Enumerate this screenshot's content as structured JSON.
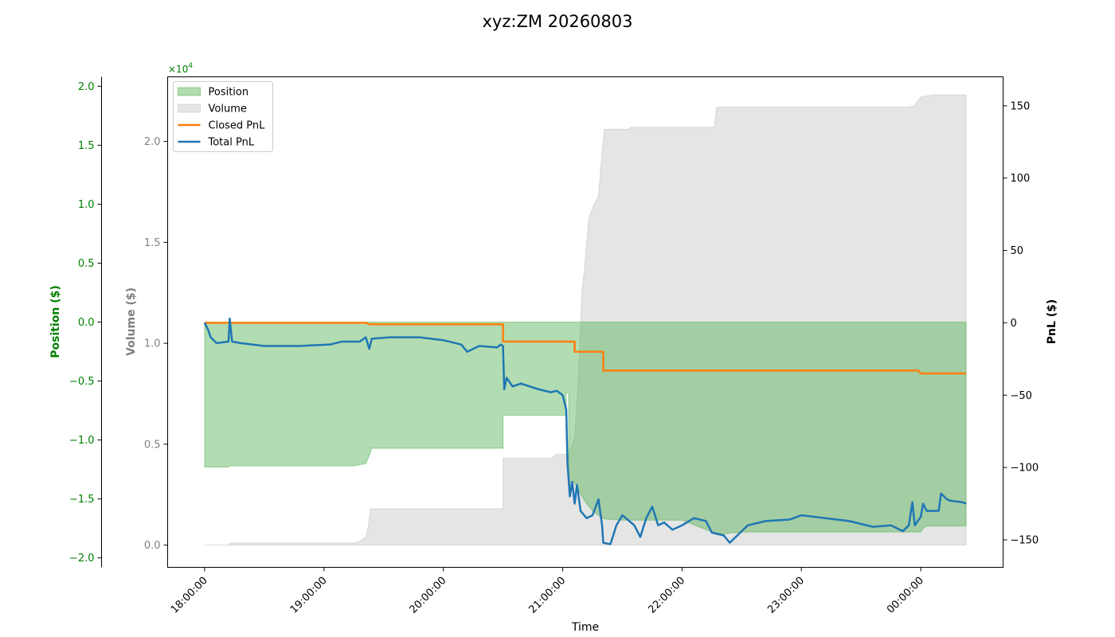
{
  "chart_data": {
    "type": "area",
    "title": "xyz:ZM 20260803",
    "xlabel": "Time",
    "x_ticks": [
      "18:00:00",
      "19:00:00",
      "20:00:00",
      "21:00:00",
      "22:00:00",
      "23:00:00",
      "00:00:00"
    ],
    "x_range_hours": [
      17.69,
      24.69
    ],
    "axes": {
      "position": {
        "label": "Position ($)",
        "color": "#008000",
        "side": "left-outer",
        "range": [
          -20800,
          20800
        ],
        "ticks": [
          -2.0,
          -1.5,
          -1.0,
          -0.5,
          0.0,
          0.5,
          1.0,
          1.5,
          2.0
        ],
        "tick_labels": [
          "−2.0",
          "−1.5",
          "−1.0",
          "−0.5",
          "0.0",
          "0.5",
          "1.0",
          "1.5",
          "2.0"
        ],
        "multiplier": "×10",
        "multiplier_exp": "4"
      },
      "volume": {
        "label": "Volume ($)",
        "color": "#808080",
        "side": "left-inner",
        "range": [
          -1100,
          23200
        ],
        "ticks": [
          0.0,
          0.5,
          1.0,
          1.5,
          2.0
        ],
        "tick_labels": [
          "0.0",
          "0.5",
          "1.0",
          "1.5",
          "2.0"
        ]
      },
      "pnl": {
        "label": "PnL ($)",
        "color": "#000000",
        "side": "right",
        "range": [
          -169,
          170
        ],
        "ticks": [
          -150,
          -100,
          -50,
          0,
          50,
          100,
          150
        ],
        "tick_labels": [
          "−150",
          "−100",
          "−50",
          "0",
          "50",
          "100",
          "150"
        ]
      }
    },
    "legend": {
      "placement": "top-left",
      "entries": [
        "Position",
        "Volume",
        "Closed PnL",
        "Total PnL"
      ]
    },
    "grid": false,
    "series": [
      {
        "name": "Position",
        "kind": "area",
        "axis": "position",
        "color": "#4daf4a",
        "fill_opacity": 0.43,
        "points": [
          [
            18.0,
            0
          ],
          [
            18.0,
            -12300
          ],
          [
            18.2,
            -12300
          ],
          [
            18.21,
            -12200
          ],
          [
            19.25,
            -12200
          ],
          [
            19.3,
            -12100
          ],
          [
            19.35,
            -12000
          ],
          [
            19.38,
            -11300
          ],
          [
            19.4,
            -10700
          ],
          [
            20.5,
            -10700
          ],
          [
            20.5,
            -7900
          ],
          [
            20.9,
            -7900
          ],
          [
            21.03,
            -7900
          ],
          [
            21.03,
            -6000
          ],
          [
            21.05,
            -6000
          ],
          [
            21.05,
            -14000
          ],
          [
            21.08,
            -14000
          ],
          [
            21.09,
            -13500
          ],
          [
            21.12,
            -14000
          ],
          [
            21.15,
            -14600
          ],
          [
            21.2,
            -15400
          ],
          [
            21.25,
            -16000
          ],
          [
            21.3,
            -16400
          ],
          [
            21.35,
            -16700
          ],
          [
            21.5,
            -16800
          ],
          [
            22.0,
            -16800
          ],
          [
            22.25,
            -17800
          ],
          [
            22.35,
            -18000
          ],
          [
            22.4,
            -17900
          ],
          [
            22.55,
            -17800
          ],
          [
            23.0,
            -17800
          ],
          [
            23.9,
            -17800
          ],
          [
            24.0,
            -17800
          ],
          [
            24.02,
            -17500
          ],
          [
            24.05,
            -17300
          ],
          [
            24.3,
            -17300
          ],
          [
            24.38,
            -17300
          ],
          [
            24.38,
            0
          ]
        ]
      },
      {
        "name": "Volume",
        "kind": "area",
        "axis": "volume",
        "color": "#bdbdbd",
        "fill_opacity": 0.4,
        "points": [
          [
            18.0,
            0
          ],
          [
            18.2,
            0
          ],
          [
            18.21,
            100
          ],
          [
            19.25,
            100
          ],
          [
            19.3,
            200
          ],
          [
            19.35,
            400
          ],
          [
            19.37,
            900
          ],
          [
            19.39,
            1800
          ],
          [
            20.5,
            1800
          ],
          [
            20.5,
            4300
          ],
          [
            20.9,
            4300
          ],
          [
            20.95,
            4500
          ],
          [
            21.05,
            4500
          ],
          [
            21.08,
            5000
          ],
          [
            21.1,
            5300
          ],
          [
            21.12,
            7000
          ],
          [
            21.14,
            9500
          ],
          [
            21.15,
            11000
          ],
          [
            21.16,
            12500
          ],
          [
            21.18,
            13500
          ],
          [
            21.2,
            15000
          ],
          [
            21.22,
            16200
          ],
          [
            21.25,
            16700
          ],
          [
            21.3,
            17300
          ],
          [
            21.33,
            19500
          ],
          [
            21.35,
            20600
          ],
          [
            21.55,
            20600
          ],
          [
            21.57,
            20700
          ],
          [
            22.27,
            20700
          ],
          [
            22.29,
            21700
          ],
          [
            23.9,
            21700
          ],
          [
            23.95,
            21800
          ],
          [
            24.0,
            22200
          ],
          [
            24.1,
            22300
          ],
          [
            24.38,
            22300
          ],
          [
            24.38,
            0
          ]
        ]
      },
      {
        "name": "Closed PnL",
        "kind": "step",
        "axis": "pnl",
        "color": "#ff7f0e",
        "points": [
          [
            18.0,
            0
          ],
          [
            19.35,
            0
          ],
          [
            19.38,
            -1
          ],
          [
            20.5,
            -1
          ],
          [
            20.5,
            -13
          ],
          [
            21.1,
            -13
          ],
          [
            21.1,
            -20
          ],
          [
            21.34,
            -20
          ],
          [
            21.34,
            -33
          ],
          [
            23.98,
            -33
          ],
          [
            24.0,
            -35
          ],
          [
            24.38,
            -35
          ]
        ]
      },
      {
        "name": "Total PnL",
        "kind": "line",
        "axis": "pnl",
        "color": "#1f77b4",
        "points": [
          [
            18.0,
            0
          ],
          [
            18.03,
            -5
          ],
          [
            18.05,
            -10
          ],
          [
            18.1,
            -14
          ],
          [
            18.2,
            -13
          ],
          [
            18.21,
            3
          ],
          [
            18.23,
            -13
          ],
          [
            18.3,
            -14
          ],
          [
            18.5,
            -16
          ],
          [
            18.8,
            -16
          ],
          [
            19.05,
            -15
          ],
          [
            19.15,
            -13
          ],
          [
            19.3,
            -13
          ],
          [
            19.35,
            -10
          ],
          [
            19.38,
            -18
          ],
          [
            19.4,
            -11
          ],
          [
            19.55,
            -10
          ],
          [
            19.8,
            -10
          ],
          [
            20.0,
            -12
          ],
          [
            20.15,
            -15
          ],
          [
            20.2,
            -20
          ],
          [
            20.3,
            -16
          ],
          [
            20.45,
            -17
          ],
          [
            20.48,
            -15
          ],
          [
            20.5,
            -16
          ],
          [
            20.51,
            -46
          ],
          [
            20.53,
            -38
          ],
          [
            20.58,
            -44
          ],
          [
            20.65,
            -42
          ],
          [
            20.8,
            -46
          ],
          [
            20.9,
            -48
          ],
          [
            20.95,
            -47
          ],
          [
            21.0,
            -50
          ],
          [
            21.03,
            -60
          ],
          [
            21.04,
            -97
          ],
          [
            21.06,
            -120
          ],
          [
            21.08,
            -110
          ],
          [
            21.1,
            -125
          ],
          [
            21.12,
            -112
          ],
          [
            21.15,
            -130
          ],
          [
            21.2,
            -135
          ],
          [
            21.25,
            -133
          ],
          [
            21.3,
            -122
          ],
          [
            21.33,
            -140
          ],
          [
            21.34,
            -152
          ],
          [
            21.4,
            -153
          ],
          [
            21.45,
            -140
          ],
          [
            21.5,
            -133
          ],
          [
            21.6,
            -140
          ],
          [
            21.65,
            -148
          ],
          [
            21.7,
            -135
          ],
          [
            21.75,
            -127
          ],
          [
            21.8,
            -140
          ],
          [
            21.85,
            -138
          ],
          [
            21.92,
            -143
          ],
          [
            22.0,
            -140
          ],
          [
            22.1,
            -135
          ],
          [
            22.2,
            -137
          ],
          [
            22.25,
            -145
          ],
          [
            22.35,
            -147
          ],
          [
            22.4,
            -152
          ],
          [
            22.55,
            -140
          ],
          [
            22.7,
            -137
          ],
          [
            22.9,
            -136
          ],
          [
            23.0,
            -133
          ],
          [
            23.2,
            -135
          ],
          [
            23.4,
            -137
          ],
          [
            23.5,
            -139
          ],
          [
            23.6,
            -141
          ],
          [
            23.75,
            -140
          ],
          [
            23.85,
            -144
          ],
          [
            23.9,
            -140
          ],
          [
            23.93,
            -124
          ],
          [
            23.95,
            -140
          ],
          [
            24.0,
            -134
          ],
          [
            24.02,
            -125
          ],
          [
            24.05,
            -130
          ],
          [
            24.15,
            -130
          ],
          [
            24.17,
            -118
          ],
          [
            24.22,
            -122
          ],
          [
            24.25,
            -123
          ],
          [
            24.35,
            -124
          ],
          [
            24.38,
            -125
          ]
        ]
      }
    ]
  }
}
